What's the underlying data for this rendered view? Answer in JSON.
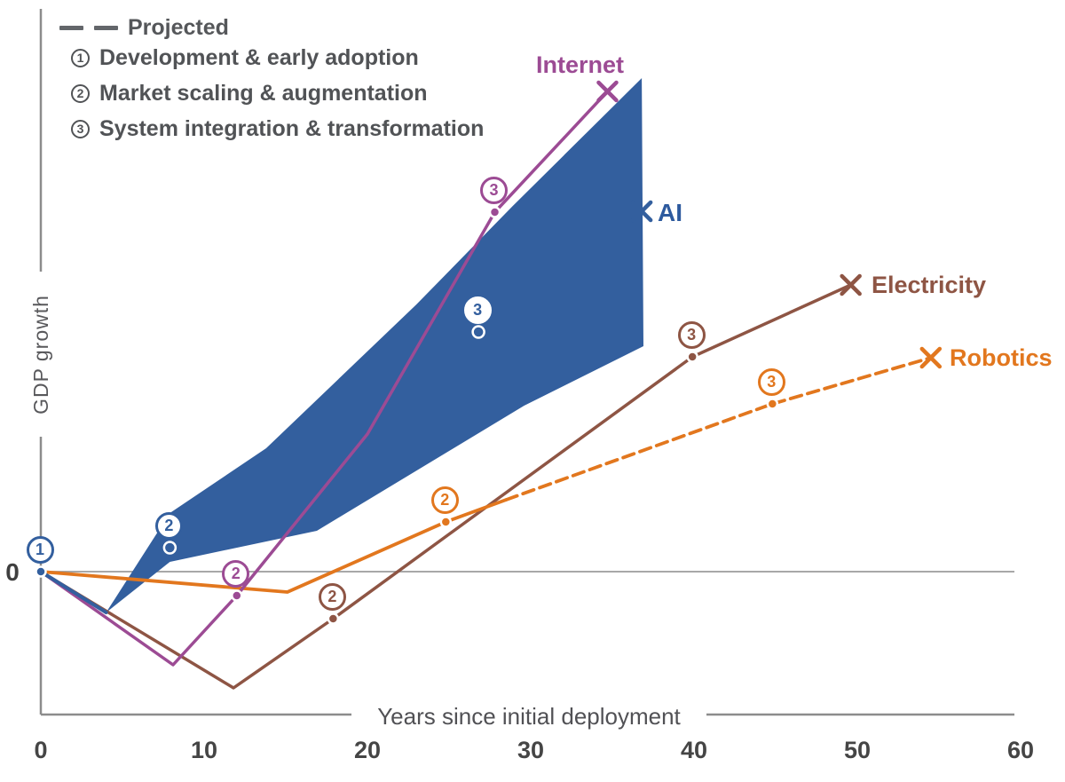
{
  "legend": {
    "projected_label": "Projected",
    "phases": [
      {
        "n": "1",
        "text": "Development & early adoption"
      },
      {
        "n": "2",
        "text": "Market scaling & augmentation"
      },
      {
        "n": "3",
        "text": "System integration & transformation"
      }
    ]
  },
  "axes": {
    "x_label": "Years since initial deployment",
    "y_label": "GDP growth",
    "zero_label": "0",
    "x_ticks": [
      0,
      10,
      20,
      30,
      40,
      50,
      60
    ]
  },
  "colors": {
    "ai": "#335F9E",
    "internet": "#9C4B94",
    "electricity": "#8E5544",
    "robotics": "#E2771E",
    "axis_gray": "#8C8C8C",
    "legend_gray": "#515356"
  },
  "chart_data": {
    "type": "line",
    "title": "",
    "xlabel": "Years since initial deployment",
    "ylabel": "GDP growth",
    "x_unit": "years",
    "y_unit": "relative GDP growth (axis unlabeled, only 0 marked)",
    "xlim": [
      0,
      60
    ],
    "grid": false,
    "notes": "AI is shown as a filled uncertainty band ending at year ~37; Robotics is dashed (projected) after year ~28; each series ends with an X marker; circled numbers 1-3 mark adoption phases.",
    "series": [
      {
        "name": "AI",
        "color": "#335F9E",
        "style": "band",
        "solid_line": [
          [
            0,
            0
          ],
          [
            4,
            -0.46
          ]
        ],
        "band_upper": [
          [
            4,
            -0.46
          ],
          [
            7.9,
            0.66
          ],
          [
            13.8,
            1.39
          ],
          [
            23,
            3.01
          ],
          [
            28.9,
            4.12
          ],
          [
            36.8,
            5.56
          ]
        ],
        "band_lower": [
          [
            4,
            -0.46
          ],
          [
            7.9,
            0.11
          ],
          [
            16.9,
            0.46
          ],
          [
            29.6,
            1.87
          ],
          [
            36.9,
            2.54
          ]
        ],
        "end_marker": {
          "x": 36.8,
          "y": 4.06,
          "glyph": "x-cross"
        },
        "phase_markers": [
          {
            "n": "1",
            "x": 0,
            "y": 0,
            "marker": "dot",
            "ring": true
          },
          {
            "n": "2",
            "x": 7.9,
            "y": 0.27,
            "marker": "open",
            "ring": true
          },
          {
            "n": "3",
            "x": 26.8,
            "y": 2.7,
            "marker": "open",
            "ring": false
          }
        ]
      },
      {
        "name": "Internet",
        "color": "#9C4B94",
        "style": "solid",
        "line": [
          [
            0,
            0
          ],
          [
            8.1,
            -1.05
          ],
          [
            12,
            -0.27
          ],
          [
            20,
            1.55
          ],
          [
            27.8,
            4.05
          ],
          [
            34.7,
            5.41
          ]
        ],
        "end_marker": {
          "x": 34.7,
          "y": 5.41,
          "glyph": "x-cross"
        },
        "phase_markers": [
          {
            "n": "2",
            "x": 12,
            "y": -0.27,
            "marker": "dot",
            "ring": true
          },
          {
            "n": "3",
            "x": 27.8,
            "y": 4.05,
            "marker": "dot",
            "ring": true
          }
        ]
      },
      {
        "name": "Electricity",
        "color": "#8E5544",
        "style": "solid",
        "line": [
          [
            0,
            0
          ],
          [
            11.8,
            -1.31
          ],
          [
            17.9,
            -0.53
          ],
          [
            39.9,
            2.42
          ],
          [
            49.6,
            3.23
          ]
        ],
        "end_marker": {
          "x": 49.6,
          "y": 3.23,
          "glyph": "x-cross"
        },
        "phase_markers": [
          {
            "n": "2",
            "x": 17.9,
            "y": -0.53,
            "marker": "dot",
            "ring": true
          },
          {
            "n": "3",
            "x": 39.9,
            "y": 2.42,
            "marker": "dot",
            "ring": true
          }
        ]
      },
      {
        "name": "Robotics",
        "color": "#E2771E",
        "style": "solid-then-projected",
        "line": [
          [
            0,
            0
          ],
          [
            15.1,
            -0.23
          ],
          [
            24.8,
            0.56
          ],
          [
            28.5,
            0.81
          ]
        ],
        "projected_line": [
          [
            28.5,
            0.81
          ],
          [
            44.8,
            1.89
          ],
          [
            54.5,
            2.41
          ]
        ],
        "end_marker": {
          "x": 54.5,
          "y": 2.41,
          "glyph": "x-cross"
        },
        "phase_markers": [
          {
            "n": "2",
            "x": 24.8,
            "y": 0.56,
            "marker": "dot",
            "ring": true
          },
          {
            "n": "3",
            "x": 44.8,
            "y": 1.89,
            "marker": "dot",
            "ring": true
          }
        ]
      }
    ]
  }
}
